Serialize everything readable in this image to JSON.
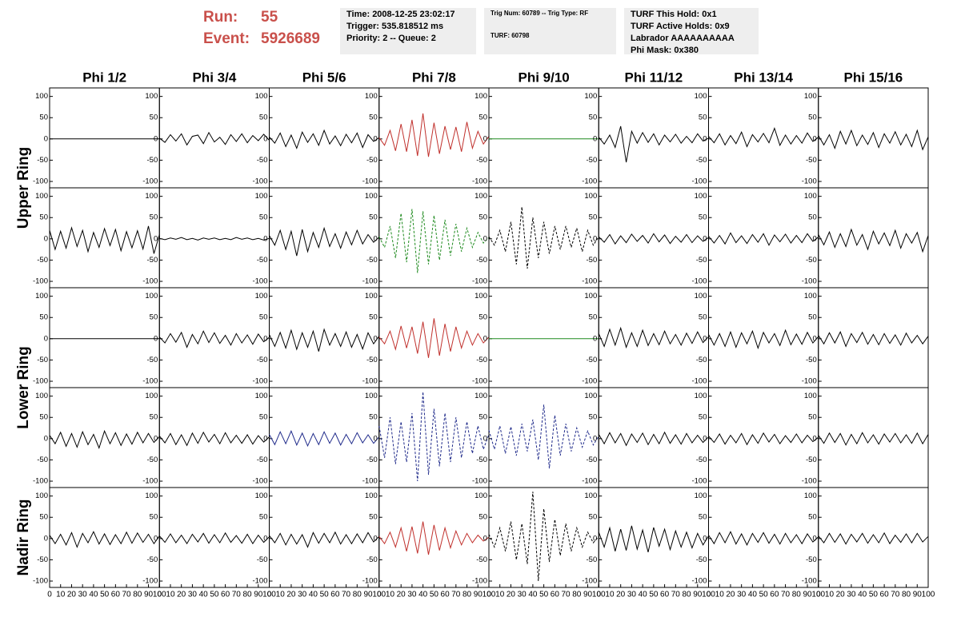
{
  "header": {
    "run_label": "Run:",
    "run": "55",
    "event_label": "Event:",
    "event": "5926689",
    "info": [
      [
        "Time: 2008-12-25 23:02:17",
        "Trigger: 535.818512 ms",
        "Priority: 2 -- Queue: 2"
      ],
      [
        "Trig Num: 60789 -- Trig Type: RF",
        "TURF: 60798"
      ],
      [
        "TURF This Hold: 0x1",
        "TURF Active Holds: 0x9",
        "Labrador AAAAAAAAAA",
        "Phi Mask: 0x380"
      ]
    ]
  },
  "chart_data": {
    "type": "line",
    "columns": [
      "Phi 1/2",
      "Phi 3/4",
      "Phi 5/6",
      "Phi 7/8",
      "Phi 9/10",
      "Phi 11/12",
      "Phi 13/14",
      "Phi 15/16"
    ],
    "row_labels": [
      "Upper Ring",
      "Lower Ring",
      "Nadir Ring"
    ],
    "xlim": [
      0,
      100
    ],
    "xticks": [
      0,
      10,
      20,
      30,
      40,
      50,
      60,
      70,
      80,
      90,
      100
    ],
    "ylim": [
      -115,
      120
    ],
    "yticks": [
      -100,
      -50,
      0,
      50,
      100
    ],
    "x": [
      0,
      5,
      10,
      15,
      20,
      25,
      30,
      35,
      40,
      45,
      50,
      55,
      60,
      65,
      70,
      75,
      80,
      85,
      90,
      95,
      100
    ],
    "panels": [
      [
        {
          "color": "#000000",
          "values": [
            0,
            0,
            0,
            0,
            0,
            0,
            0,
            0,
            0,
            0,
            0,
            0,
            0,
            0,
            0,
            0,
            0,
            0,
            0,
            0,
            0
          ]
        },
        {
          "color": "#000000",
          "values": [
            2,
            -8,
            10,
            -5,
            12,
            -14,
            6,
            9,
            -11,
            15,
            -7,
            4,
            -13,
            10,
            -6,
            12,
            -9,
            8,
            -4,
            11,
            -3
          ]
        },
        {
          "color": "#000000",
          "values": [
            5,
            -10,
            14,
            -18,
            9,
            -22,
            16,
            -8,
            12,
            -15,
            20,
            -12,
            7,
            -16,
            11,
            -9,
            14,
            -20,
            10,
            -6,
            3
          ]
        },
        {
          "color": "#c0302c",
          "values": [
            3,
            -15,
            20,
            -28,
            35,
            -30,
            45,
            -40,
            60,
            -42,
            38,
            -35,
            30,
            -25,
            28,
            -30,
            40,
            -22,
            18,
            -12,
            6
          ]
        },
        {
          "color": "#1e8a1e",
          "values": [
            0,
            0,
            0,
            0,
            0,
            0,
            0,
            0,
            0,
            0,
            0,
            0,
            0,
            0,
            0,
            0,
            0,
            0,
            0,
            0,
            0
          ]
        },
        {
          "color": "#000000",
          "values": [
            4,
            -12,
            9,
            -20,
            30,
            -55,
            18,
            -10,
            15,
            -8,
            12,
            -14,
            9,
            -7,
            11,
            -10,
            6,
            -9,
            12,
            -5,
            2
          ]
        },
        {
          "color": "#000000",
          "values": [
            6,
            -9,
            12,
            -14,
            8,
            -11,
            16,
            -18,
            10,
            -7,
            13,
            -9,
            25,
            -15,
            9,
            -12,
            8,
            -10,
            14,
            -6,
            4
          ]
        },
        {
          "color": "#000000",
          "values": [
            8,
            -14,
            10,
            -22,
            18,
            -12,
            20,
            -16,
            9,
            -13,
            15,
            -20,
            12,
            -10,
            17,
            -14,
            11,
            -18,
            20,
            -25,
            5
          ]
        }
      ],
      [
        {
          "color": "#000000",
          "values": [
            20,
            -25,
            18,
            -22,
            26,
            -18,
            20,
            -30,
            15,
            -20,
            24,
            -16,
            22,
            -28,
            17,
            -21,
            19,
            -24,
            30,
            -35,
            10
          ]
        },
        {
          "color": "#000000",
          "values": [
            1,
            -2,
            2,
            -1,
            3,
            -2,
            1,
            -3,
            2,
            -1,
            2,
            -2,
            1,
            -2,
            3,
            -1,
            2,
            -2,
            1,
            -3,
            1
          ]
        },
        {
          "color": "#000000",
          "values": [
            8,
            -15,
            20,
            -25,
            18,
            -40,
            22,
            -30,
            15,
            -20,
            25,
            -18,
            12,
            -22,
            16,
            -14,
            20,
            -12,
            10,
            -8,
            4
          ]
        },
        {
          "color": "#1e8a1e",
          "dashed": true,
          "values": [
            5,
            -20,
            30,
            -45,
            60,
            -55,
            70,
            -80,
            65,
            -60,
            55,
            -50,
            45,
            -40,
            35,
            -30,
            25,
            -20,
            15,
            -10,
            3
          ]
        },
        {
          "color": "#000000",
          "dashed": true,
          "values": [
            5,
            -15,
            20,
            -30,
            40,
            -60,
            75,
            -70,
            50,
            -45,
            40,
            -35,
            30,
            -25,
            30,
            -20,
            25,
            -30,
            20,
            -15,
            5
          ]
        },
        {
          "color": "#000000",
          "values": [
            5,
            -8,
            10,
            -12,
            7,
            -9,
            11,
            -6,
            8,
            -10,
            12,
            -7,
            9,
            -11,
            6,
            -8,
            10,
            -9,
            7,
            -6,
            3
          ]
        },
        {
          "color": "#000000",
          "values": [
            6,
            -10,
            8,
            -12,
            14,
            -9,
            7,
            -11,
            10,
            -8,
            12,
            -15,
            9,
            -7,
            11,
            -10,
            8,
            -9,
            12,
            -6,
            4
          ]
        },
        {
          "color": "#000000",
          "values": [
            10,
            -14,
            16,
            -20,
            12,
            -18,
            22,
            -15,
            10,
            -25,
            18,
            -12,
            14,
            -16,
            20,
            -22,
            12,
            -10,
            15,
            -30,
            8
          ]
        }
      ],
      [
        {
          "color": "#000000",
          "values": [
            0,
            0,
            0,
            0,
            0,
            0,
            0,
            0,
            0,
            0,
            0,
            0,
            0,
            0,
            0,
            0,
            0,
            0,
            0,
            0,
            0
          ]
        },
        {
          "color": "#000000",
          "values": [
            4,
            -10,
            12,
            -8,
            15,
            -20,
            10,
            -12,
            18,
            -9,
            14,
            -11,
            8,
            -15,
            12,
            -10,
            9,
            -13,
            11,
            -7,
            3
          ]
        },
        {
          "color": "#000000",
          "values": [
            10,
            -18,
            15,
            -22,
            20,
            -25,
            14,
            -20,
            18,
            -30,
            22,
            -15,
            12,
            -18,
            16,
            -20,
            10,
            -24,
            14,
            -12,
            6
          ]
        },
        {
          "color": "#c0302c",
          "values": [
            4,
            -12,
            18,
            -25,
            30,
            -22,
            28,
            -35,
            40,
            -45,
            48,
            -40,
            35,
            -30,
            28,
            -22,
            18,
            -15,
            12,
            -10,
            4
          ]
        },
        {
          "color": "#1e8a1e",
          "values": [
            0,
            0,
            0,
            0,
            0,
            0,
            0,
            0,
            0,
            0,
            0,
            0,
            0,
            0,
            0,
            0,
            0,
            0,
            0,
            0,
            0
          ]
        },
        {
          "color": "#000000",
          "values": [
            12,
            -18,
            22,
            -15,
            25,
            -20,
            14,
            -18,
            20,
            -16,
            12,
            -14,
            18,
            -12,
            10,
            -15,
            13,
            -11,
            16,
            -9,
            5
          ]
        },
        {
          "color": "#000000",
          "values": [
            10,
            -15,
            12,
            -18,
            16,
            -20,
            14,
            -12,
            18,
            -22,
            15,
            -10,
            12,
            -16,
            20,
            -14,
            11,
            -13,
            15,
            -10,
            5
          ]
        },
        {
          "color": "#000000",
          "values": [
            8,
            -12,
            14,
            -10,
            16,
            -18,
            12,
            -9,
            15,
            -13,
            10,
            -14,
            12,
            -11,
            9,
            -15,
            13,
            -10,
            8,
            -12,
            6
          ]
        }
      ],
      [
        {
          "color": "#000000",
          "values": [
            8,
            -12,
            15,
            -18,
            12,
            -20,
            16,
            -14,
            10,
            -22,
            18,
            -12,
            14,
            -16,
            11,
            -13,
            15,
            -10,
            12,
            -9,
            5
          ]
        },
        {
          "color": "#000000",
          "values": [
            6,
            -10,
            12,
            -14,
            9,
            -16,
            13,
            -11,
            15,
            -8,
            10,
            -12,
            14,
            -10,
            8,
            -11,
            9,
            -13,
            7,
            -8,
            4
          ]
        },
        {
          "color": "#1f2a8a",
          "values": [
            10,
            -14,
            16,
            -12,
            18,
            -15,
            13,
            -17,
            12,
            -14,
            16,
            -11,
            13,
            -15,
            10,
            -12,
            14,
            -10,
            9,
            -11,
            4
          ]
        },
        {
          "color": "#1f2a8a",
          "dashed": true,
          "values": [
            30,
            -45,
            50,
            -60,
            40,
            -55,
            60,
            -100,
            110,
            -85,
            70,
            -65,
            60,
            -55,
            50,
            -45,
            40,
            -35,
            30,
            -25,
            10
          ]
        },
        {
          "color": "#1f2a8a",
          "dashed": true,
          "values": [
            20,
            -25,
            30,
            -35,
            28,
            -40,
            35,
            -30,
            45,
            -50,
            80,
            -70,
            55,
            -40,
            35,
            -30,
            25,
            -20,
            18,
            -15,
            6
          ]
        },
        {
          "color": "#000000",
          "values": [
            10,
            -12,
            14,
            -10,
            12,
            -16,
            11,
            -9,
            13,
            -14,
            10,
            -12,
            15,
            -11,
            9,
            -13,
            12,
            -10,
            8,
            -9,
            4
          ]
        },
        {
          "color": "#000000",
          "values": [
            6,
            -9,
            11,
            -13,
            8,
            -10,
            12,
            -14,
            9,
            -11,
            13,
            -8,
            10,
            -12,
            7,
            -9,
            11,
            -10,
            8,
            -7,
            3
          ]
        },
        {
          "color": "#000000",
          "values": [
            8,
            -11,
            13,
            -9,
            12,
            -15,
            10,
            -12,
            14,
            -10,
            9,
            -13,
            11,
            -8,
            12,
            -10,
            9,
            -11,
            13,
            -12,
            10
          ]
        }
      ],
      [
        {
          "color": "#000000",
          "values": [
            8,
            -12,
            10,
            -15,
            14,
            -20,
            12,
            -10,
            16,
            -13,
            11,
            -14,
            9,
            -12,
            15,
            -11,
            13,
            -9,
            10,
            -12,
            6
          ]
        },
        {
          "color": "#000000",
          "values": [
            6,
            -9,
            11,
            -10,
            8,
            -12,
            10,
            -8,
            12,
            -11,
            9,
            -10,
            13,
            -9,
            7,
            -11,
            10,
            -12,
            8,
            -9,
            4
          ]
        },
        {
          "color": "#000000",
          "values": [
            7,
            -10,
            12,
            -15,
            10,
            -13,
            9,
            -20,
            14,
            -11,
            12,
            -10,
            15,
            -13,
            9,
            -12,
            11,
            -10,
            14,
            -8,
            5
          ]
        },
        {
          "color": "#c0302c",
          "values": [
            5,
            -12,
            15,
            -20,
            25,
            -30,
            28,
            -35,
            40,
            -38,
            32,
            -28,
            25,
            -22,
            18,
            -15,
            12,
            -10,
            8,
            -6,
            3
          ]
        },
        {
          "color": "#000000",
          "dashed": true,
          "values": [
            10,
            -20,
            25,
            -30,
            40,
            -50,
            35,
            -60,
            110,
            -100,
            70,
            -55,
            45,
            -40,
            35,
            -30,
            25,
            -20,
            15,
            -10,
            5
          ]
        },
        {
          "color": "#000000",
          "values": [
            15,
            -20,
            25,
            -30,
            22,
            -28,
            30,
            -25,
            20,
            -32,
            26,
            -18,
            22,
            -26,
            18,
            -20,
            15,
            -22,
            12,
            -15,
            6
          ]
        },
        {
          "color": "#000000",
          "values": [
            8,
            -12,
            14,
            -10,
            16,
            -13,
            11,
            -15,
            12,
            -9,
            14,
            -11,
            10,
            -13,
            12,
            -10,
            9,
            -12,
            11,
            -8,
            4
          ]
        },
        {
          "color": "#000000",
          "values": [
            6,
            -10,
            12,
            -9,
            11,
            -13,
            10,
            -8,
            12,
            -11,
            9,
            -10,
            13,
            -12,
            8,
            -9,
            11,
            -10,
            12,
            -8,
            5
          ]
        }
      ]
    ]
  }
}
